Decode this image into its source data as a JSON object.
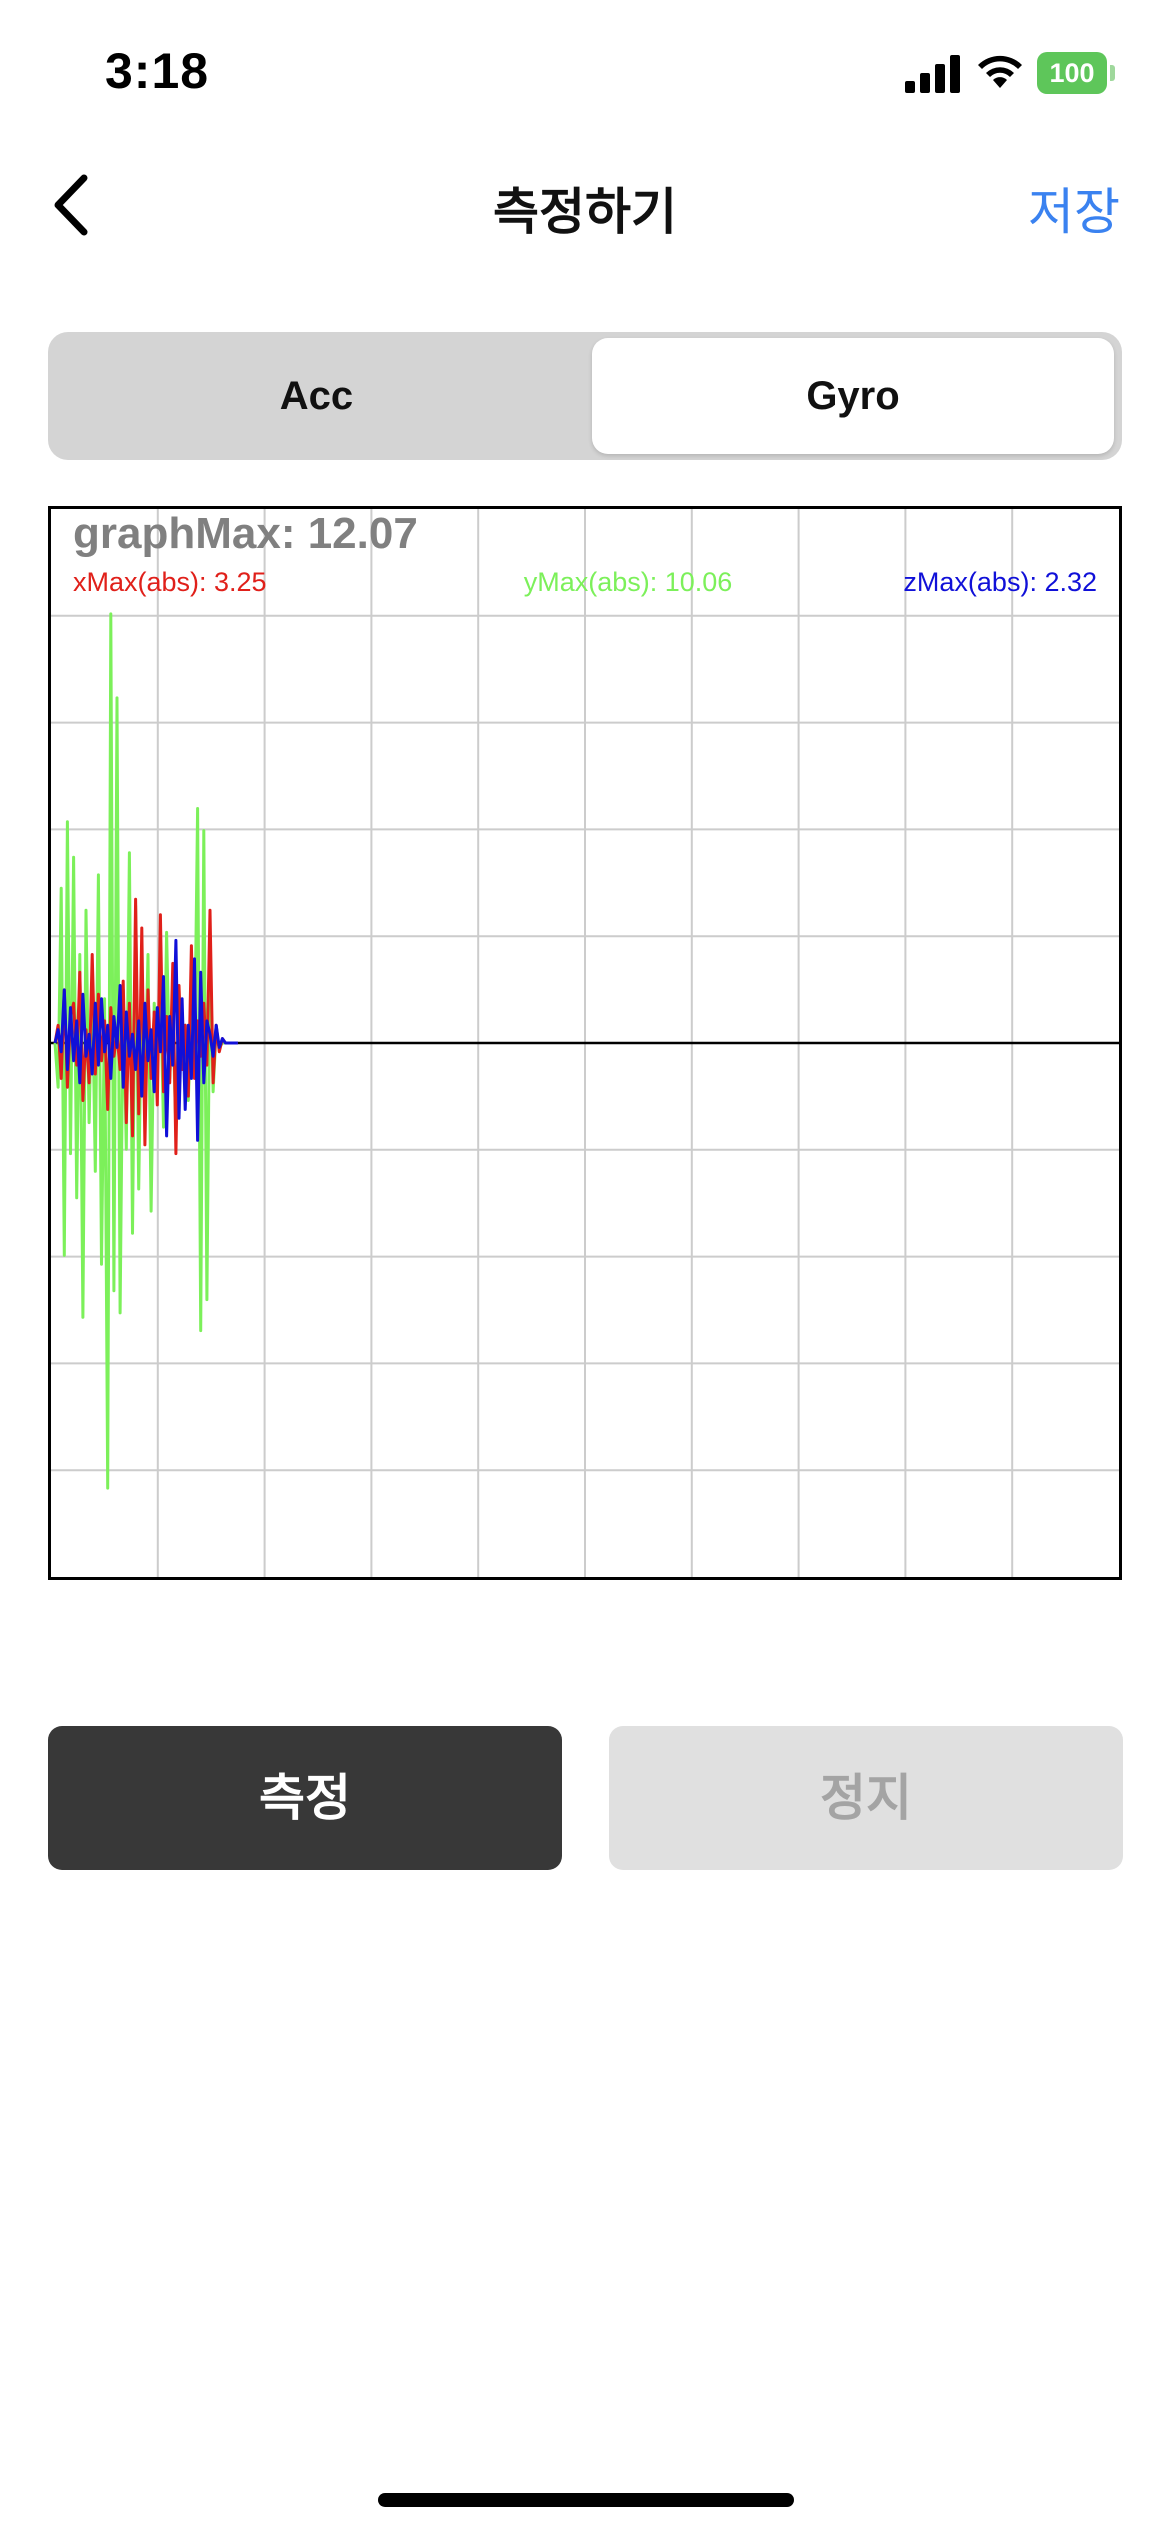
{
  "status": {
    "time": "3:18",
    "battery": "100"
  },
  "nav": {
    "title": "측정하기",
    "save_label": "저장"
  },
  "segments": {
    "acc_label": "Acc",
    "gyro_label": "Gyro",
    "selected": "Gyro"
  },
  "graph": {
    "graph_max": "graphMax: 12.07",
    "x_max": "xMax(abs): 3.25",
    "y_max": "yMax(abs): 10.06",
    "z_max": "zMax(abs): 2.32"
  },
  "buttons": {
    "measure_label": "측정",
    "stop_label": "정지"
  },
  "colors": {
    "x_series": "#e0201a",
    "y_series": "#7cf05a",
    "z_series": "#1010d8",
    "accent": "#3a82f0"
  },
  "chart_data": {
    "type": "line",
    "title": "graphMax: 12.07",
    "ylim": [
      -12.07,
      12.07
    ],
    "x": [
      0,
      1,
      2,
      3,
      4,
      5,
      6,
      7,
      8,
      9,
      10,
      11,
      12,
      13,
      14,
      15,
      16,
      17,
      18,
      19,
      20,
      21,
      22,
      23,
      24,
      25,
      26,
      27,
      28,
      29,
      30,
      31,
      32,
      33,
      34,
      35,
      36,
      37,
      38,
      39,
      40,
      41,
      42,
      43,
      44,
      45,
      46,
      47,
      48,
      49,
      50,
      51,
      52,
      53,
      54,
      55,
      56,
      57,
      58,
      59
    ],
    "series": [
      {
        "name": "xMax(abs): 3.25",
        "values": [
          0.0,
          0.4,
          -0.8,
          1.2,
          -1.0,
          0.6,
          0.9,
          -0.5,
          1.6,
          -1.3,
          0.3,
          -0.9,
          2.0,
          -0.7,
          1.1,
          -0.4,
          0.5,
          -1.5,
          0.8,
          -0.3,
          0.2,
          -0.6,
          1.4,
          -1.8,
          0.9,
          -2.1,
          3.25,
          -1.6,
          2.6,
          -2.3,
          1.2,
          -0.8,
          0.7,
          -1.4,
          2.9,
          -1.1,
          0.6,
          -0.9,
          1.8,
          -2.5,
          1.3,
          -0.6,
          0.4,
          -1.2,
          2.2,
          -0.8,
          0.5,
          -0.3,
          0.9,
          -0.5,
          3.0,
          -0.9,
          0.4,
          -0.2,
          0.1,
          0.0,
          0.0,
          0.0,
          0.0,
          0.0
        ]
      },
      {
        "name": "yMax(abs): 10.06",
        "values": [
          0.0,
          -1.0,
          3.5,
          -4.8,
          5.0,
          -2.5,
          4.2,
          -3.5,
          2.0,
          -6.2,
          3.0,
          -1.8,
          1.5,
          -2.9,
          3.8,
          -5.0,
          1.0,
          -10.06,
          9.7,
          -5.6,
          7.8,
          -6.1,
          1.2,
          -2.4,
          4.3,
          -4.3,
          3.1,
          -3.3,
          1.4,
          -1.0,
          2.0,
          -3.8,
          0.9,
          -0.6,
          1.5,
          -1.9,
          2.5,
          -0.8,
          0.6,
          -2.0,
          1.1,
          -0.5,
          0.4,
          -1.3,
          0.8,
          -0.4,
          5.3,
          -6.5,
          4.8,
          -5.8,
          2.0,
          -1.1,
          0.3,
          -0.1,
          0.0,
          0.0,
          0.0,
          0.0,
          0.0,
          0.0
        ]
      },
      {
        "name": "zMax(abs): 2.32",
        "values": [
          0.0,
          0.3,
          -0.2,
          1.2,
          -0.6,
          0.8,
          -0.4,
          0.5,
          -0.9,
          1.1,
          -0.3,
          0.2,
          -0.7,
          0.9,
          -0.5,
          1.0,
          -0.2,
          0.4,
          -0.8,
          0.6,
          -0.1,
          1.3,
          -1.0,
          0.7,
          -0.3,
          0.2,
          -0.6,
          0.5,
          -1.2,
          0.9,
          -0.4,
          0.3,
          -1.1,
          0.8,
          -0.2,
          1.5,
          -2.1,
          0.6,
          -0.5,
          2.32,
          -1.7,
          1.0,
          -1.5,
          0.4,
          -0.8,
          1.9,
          -2.2,
          1.6,
          -0.9,
          0.5,
          0.2,
          -0.3,
          0.4,
          -0.1,
          0.1,
          0.0,
          0.0,
          0.0,
          0.0,
          0.0
        ]
      }
    ]
  }
}
